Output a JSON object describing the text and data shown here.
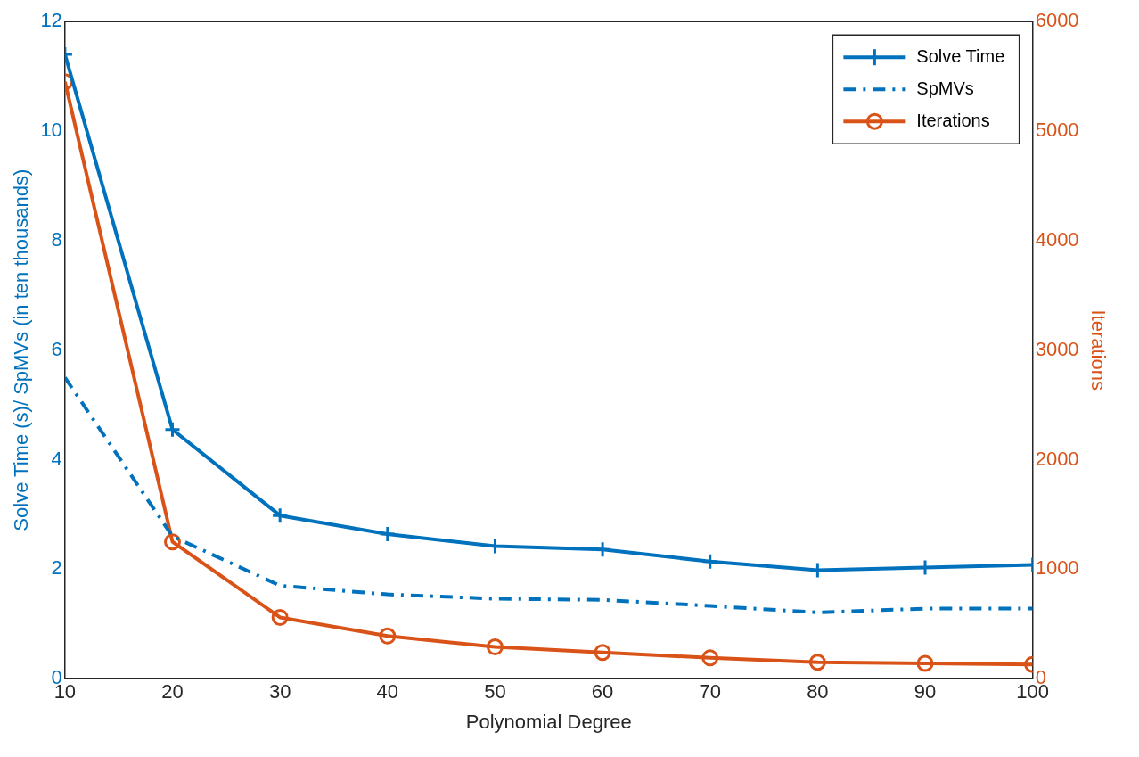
{
  "chart_data": {
    "type": "line",
    "xlabel": "Polynomial Degree",
    "ylabel": "Solve Time (s)/ SpMVs (in ten thousands)",
    "y2label": "Iterations",
    "x": [
      10,
      20,
      30,
      40,
      50,
      60,
      70,
      80,
      90,
      100
    ],
    "series": [
      {
        "name": "Solve Time",
        "color": "#0072bd",
        "marker": "cross",
        "line_style": "solid",
        "values": [
          11.4,
          4.55,
          2.98,
          2.64,
          2.42,
          2.36,
          2.14,
          1.98,
          2.03,
          2.08
        ]
      },
      {
        "name": "SpMVs",
        "color": "#0072bd",
        "marker": "none",
        "line_style": "dashed",
        "values": [
          5.5,
          2.6,
          1.7,
          1.54,
          1.46,
          1.44,
          1.33,
          1.21,
          1.28,
          1.28
        ]
      },
      {
        "name": "Iterations",
        "color": "#d95319",
        "marker": "circle",
        "line_style": "solid",
        "axis": "y2",
        "values": [
          5450,
          1250,
          560,
          390,
          290,
          240,
          190,
          150,
          140,
          130
        ]
      }
    ],
    "xlim": [
      10,
      100
    ],
    "xticks": [
      10,
      20,
      30,
      40,
      50,
      60,
      70,
      80,
      90,
      100
    ],
    "ylim": [
      0,
      12
    ],
    "yticks": [
      0,
      2,
      4,
      6,
      8,
      10,
      12
    ],
    "y2lim": [
      0,
      6000
    ],
    "y2ticks": [
      0,
      1000,
      2000,
      3000,
      4000,
      5000,
      6000
    ],
    "grid": false,
    "legend": "top right"
  }
}
